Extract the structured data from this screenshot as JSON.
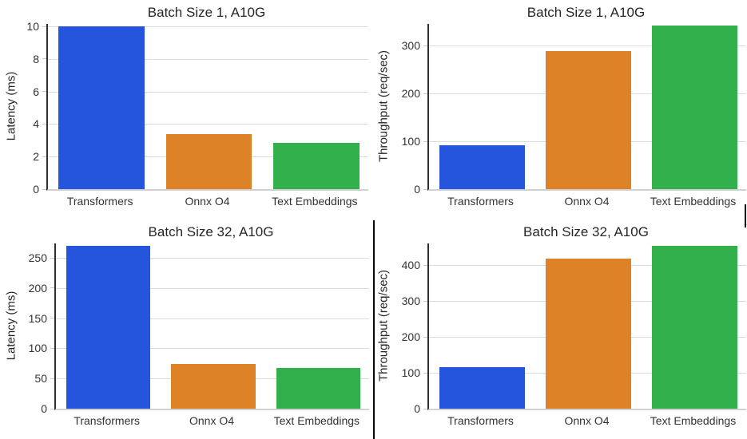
{
  "palette": {
    "blue": "#2554DD",
    "orange": "#DE8227",
    "green": "#32B04B",
    "gridline": "#dcdcdc",
    "spine_dark": "#2f2f2f",
    "spine_light": "#d2d2d2",
    "text": "#262626"
  },
  "chart_data": [
    {
      "type": "bar",
      "title": "Batch Size 1, A10G",
      "ylabel": "Latency (ms)",
      "xlabel": "",
      "categories": [
        "Transformers",
        "Onnx O4",
        "Text Embeddings"
      ],
      "values": [
        10.0,
        3.4,
        2.85
      ],
      "bar_colors": [
        "#2554DD",
        "#DE8227",
        "#32B04B"
      ],
      "yticks": [
        0,
        2,
        4,
        6,
        8,
        10
      ],
      "ylim": [
        0,
        10.15
      ],
      "grid": true,
      "legend": "none"
    },
    {
      "type": "bar",
      "title": "Batch Size 1, A10G",
      "ylabel": "Throughput (req/sec)",
      "xlabel": "",
      "categories": [
        "Transformers",
        "Onnx O4",
        "Text Embeddings"
      ],
      "values": [
        91,
        288,
        341
      ],
      "bar_colors": [
        "#2554DD",
        "#DE8227",
        "#32B04B"
      ],
      "yticks": [
        0,
        100,
        200,
        300
      ],
      "ylim": [
        0,
        345
      ],
      "grid": true,
      "legend": "none"
    },
    {
      "type": "bar",
      "title": "Batch Size 32, A10G",
      "ylabel": "Latency (ms)",
      "xlabel": "",
      "categories": [
        "Transformers",
        "Onnx O4",
        "Text Embeddings"
      ],
      "values": [
        270,
        74,
        68
      ],
      "bar_colors": [
        "#2554DD",
        "#DE8227",
        "#32B04B"
      ],
      "yticks": [
        0,
        50,
        100,
        150,
        200,
        250
      ],
      "ylim": [
        0,
        274
      ],
      "grid": true,
      "legend": "none"
    },
    {
      "type": "bar",
      "title": "Batch Size 32, A10G",
      "ylabel": "Throughput (req/sec)",
      "xlabel": "",
      "categories": [
        "Transformers",
        "Onnx O4",
        "Text Embeddings"
      ],
      "values": [
        116,
        418,
        454
      ],
      "bar_colors": [
        "#2554DD",
        "#DE8227",
        "#32B04B"
      ],
      "yticks": [
        0,
        100,
        200,
        300,
        400
      ],
      "ylim": [
        0,
        460
      ],
      "grid": true,
      "legend": "none"
    }
  ]
}
